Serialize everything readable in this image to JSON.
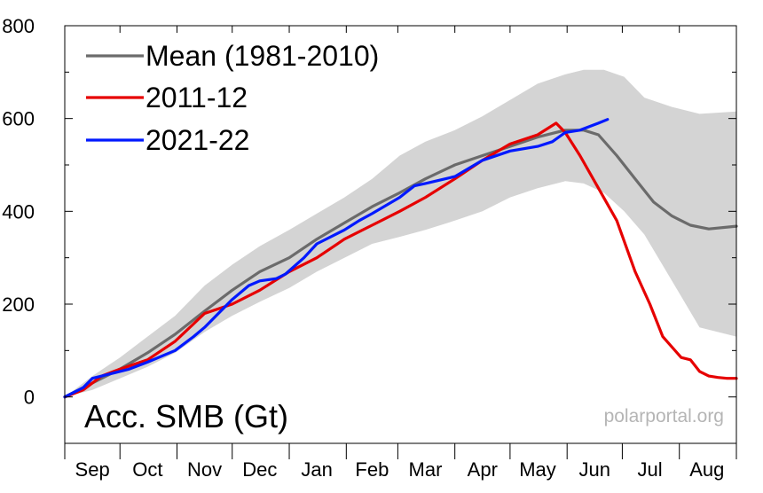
{
  "chart_data": {
    "type": "line",
    "title": "",
    "annotation_text": "Acc. SMB (Gt)",
    "watermark": "polarportal.org",
    "xlabel": "",
    "ylabel": "",
    "grid": false,
    "legend_position": "top-left",
    "x_domain": [
      0,
      365
    ],
    "x_ticks": [
      {
        "label": "Sep",
        "x": 15
      },
      {
        "label": "Oct",
        "x": 45
      },
      {
        "label": "Nov",
        "x": 76
      },
      {
        "label": "Dec",
        "x": 106
      },
      {
        "label": "Jan",
        "x": 137
      },
      {
        "label": "Feb",
        "x": 167
      },
      {
        "label": "Mar",
        "x": 196
      },
      {
        "label": "Apr",
        "x": 227
      },
      {
        "label": "May",
        "x": 257
      },
      {
        "label": "Jun",
        "x": 288
      },
      {
        "label": "Jul",
        "x": 318
      },
      {
        "label": "Aug",
        "x": 349
      }
    ],
    "y_ticks": [
      0,
      200,
      400,
      600,
      800
    ],
    "y_ticks_minor": [
      -100,
      100,
      300,
      500,
      700
    ],
    "ylim": [
      -100,
      800
    ],
    "band": {
      "name": "range",
      "color": "#d4d4d4",
      "x": [
        0,
        15,
        30,
        45,
        60,
        76,
        91,
        106,
        122,
        137,
        152,
        167,
        182,
        196,
        212,
        227,
        242,
        257,
        272,
        282,
        293,
        304,
        315,
        330,
        345,
        365
      ],
      "upper": [
        0,
        45,
        85,
        130,
        175,
        240,
        285,
        325,
        360,
        395,
        430,
        470,
        520,
        550,
        575,
        605,
        640,
        675,
        695,
        705,
        705,
        690,
        645,
        625,
        610,
        615
      ],
      "lower": [
        0,
        15,
        40,
        65,
        95,
        140,
        175,
        205,
        235,
        270,
        300,
        330,
        345,
        360,
        380,
        400,
        430,
        450,
        465,
        460,
        440,
        400,
        350,
        250,
        150,
        130
      ]
    },
    "series": [
      {
        "name": "Mean (1981-2010)",
        "color": "#6b6b6b",
        "x": [
          0,
          15,
          30,
          45,
          60,
          76,
          91,
          106,
          122,
          137,
          152,
          167,
          182,
          196,
          212,
          227,
          242,
          257,
          272,
          282,
          290,
          300,
          310,
          320,
          330,
          340,
          350,
          365
        ],
        "y": [
          0,
          30,
          60,
          95,
          135,
          185,
          230,
          270,
          300,
          340,
          375,
          410,
          440,
          470,
          500,
          520,
          540,
          560,
          575,
          575,
          565,
          520,
          470,
          420,
          390,
          370,
          362,
          368
        ]
      },
      {
        "name": "2011-12",
        "color": "#e60000",
        "x": [
          0,
          10,
          20,
          30,
          45,
          60,
          76,
          91,
          106,
          122,
          137,
          152,
          167,
          182,
          196,
          212,
          227,
          242,
          257,
          267,
          272,
          280,
          290,
          300,
          310,
          318,
          325,
          335,
          340,
          345,
          350,
          355,
          360,
          365
        ],
        "y": [
          0,
          15,
          45,
          60,
          80,
          120,
          180,
          200,
          230,
          270,
          300,
          340,
          370,
          400,
          430,
          470,
          510,
          545,
          565,
          590,
          570,
          520,
          450,
          380,
          270,
          200,
          130,
          85,
          80,
          55,
          45,
          42,
          40,
          40
        ]
      },
      {
        "name": "2021-22",
        "color": "#0019ff",
        "x": [
          0,
          10,
          15,
          25,
          35,
          45,
          60,
          70,
          76,
          91,
          100,
          106,
          115,
          120,
          130,
          137,
          152,
          160,
          167,
          182,
          190,
          196,
          212,
          227,
          242,
          257,
          265,
          272,
          280,
          290,
          295
        ],
        "y": [
          0,
          20,
          40,
          50,
          60,
          75,
          100,
          130,
          150,
          210,
          240,
          250,
          255,
          265,
          300,
          330,
          360,
          380,
          395,
          430,
          455,
          460,
          475,
          510,
          530,
          540,
          550,
          570,
          575,
          590,
          598
        ]
      }
    ]
  }
}
